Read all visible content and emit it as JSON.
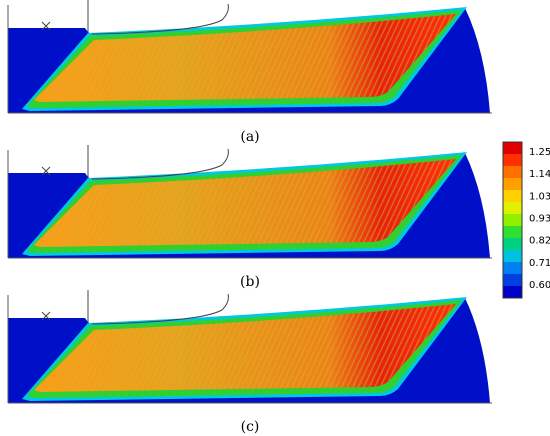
{
  "panels": [
    {
      "label": "(a)"
    },
    {
      "label": "(b)"
    },
    {
      "label": "(c)"
    }
  ],
  "colorbar": {
    "ticks": [
      "1.25",
      "1.14",
      "1.03",
      "0.93",
      "0.82",
      "0.71",
      "0.60"
    ]
  }
}
